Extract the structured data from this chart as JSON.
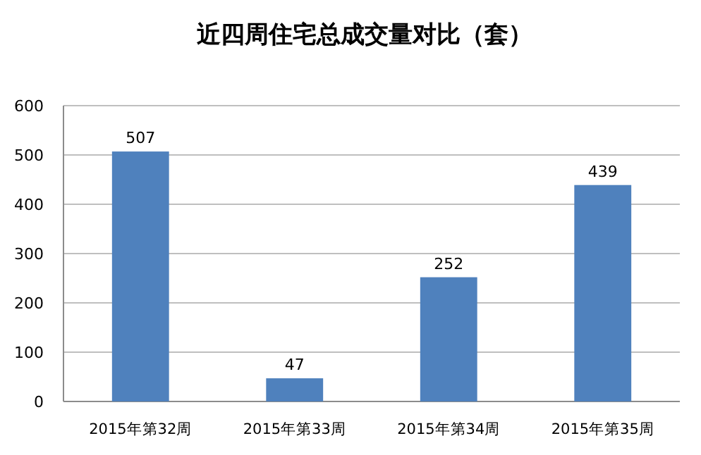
{
  "chart_data": {
    "type": "bar",
    "title": "近四周住宅总成交量对比（套）",
    "categories": [
      "2015年第32周",
      "2015年第33周",
      "2015年第34周",
      "2015年第35周"
    ],
    "values": [
      507,
      47,
      252,
      439
    ],
    "color": "#4f81bd",
    "ylim": [
      0,
      600
    ],
    "yticks": [
      0,
      100,
      200,
      300,
      400,
      500,
      600
    ],
    "grid": "y",
    "data_labels": true
  }
}
